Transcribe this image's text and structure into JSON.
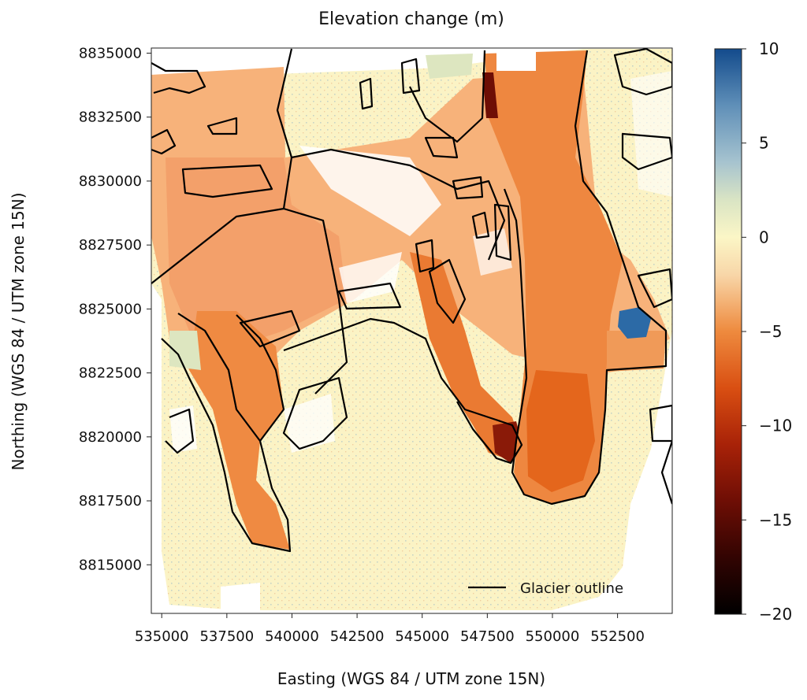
{
  "chart_data": {
    "type": "heatmap",
    "title": "Elevation change (m)",
    "xlabel": "Easting (WGS 84 / UTM zone 15N)",
    "ylabel": "Northing (WGS 84 / UTM zone 15N)",
    "xlim": [
      534600,
      554600
    ],
    "ylim": [
      8813100,
      8835200
    ],
    "xticks": [
      535000,
      537500,
      540000,
      542500,
      545000,
      547500,
      550000,
      552500
    ],
    "xtick_labels": [
      "535000",
      "537500",
      "540000",
      "542500",
      "545000",
      "547500",
      "550000",
      "552500"
    ],
    "yticks": [
      8815000,
      8817500,
      8820000,
      8822500,
      8825000,
      8827500,
      8830000,
      8832500,
      8835000
    ],
    "ytick_labels": [
      "8815000",
      "8817500",
      "8820000",
      "8822500",
      "8825000",
      "8827500",
      "8830000",
      "8832500",
      "8835000"
    ],
    "colorbar": {
      "range": [
        -20,
        10
      ],
      "ticks": [
        10,
        5,
        0,
        -5,
        -10,
        -15,
        -20
      ],
      "tick_labels": [
        "10",
        "5",
        "0",
        "−5",
        "−10",
        "−15",
        "−20"
      ],
      "colormap": [
        {
          "value": 10,
          "color": "#134b8c"
        },
        {
          "value": 7,
          "color": "#5f8fb8"
        },
        {
          "value": 4,
          "color": "#a6c3cf"
        },
        {
          "value": 2,
          "color": "#d9e4c4"
        },
        {
          "value": 0,
          "color": "#fbf6c6"
        },
        {
          "value": -2,
          "color": "#f8d6a8"
        },
        {
          "value": -5,
          "color": "#ee8a3e"
        },
        {
          "value": -8,
          "color": "#d94f12"
        },
        {
          "value": -11,
          "color": "#a82208"
        },
        {
          "value": -14,
          "color": "#6e0e05"
        },
        {
          "value": -17,
          "color": "#320402"
        },
        {
          "value": -20,
          "color": "#000000"
        }
      ]
    },
    "legend": {
      "label": "Glacier outline",
      "placement": "bottom-right",
      "line_color": "#000000"
    },
    "grid": false
  }
}
